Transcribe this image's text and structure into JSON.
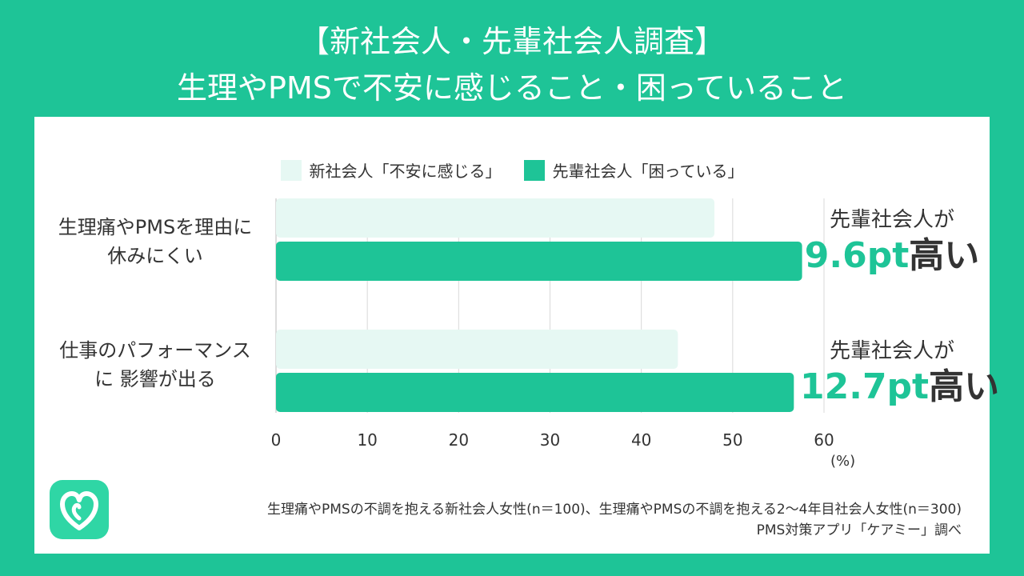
{
  "title_line1": "【新社会人・先輩社会人調査】",
  "title_line2": "生理やPMSで不安に感じること・困っていること",
  "colors": {
    "background": "#1ec497",
    "series_new": "#e6f8f3",
    "series_senior": "#1ec497",
    "accent_text": "#1ec497"
  },
  "annotations": [
    {
      "top": "先輩社会人が",
      "num": "9.6pt",
      "suffix": "高い"
    },
    {
      "top": "先輩社会人が",
      "num": "12.7pt",
      "suffix": "高い"
    }
  ],
  "category_lines": [
    [
      "生理痛やPMSを理由に",
      "休みにくい"
    ],
    [
      "仕事のパフォーマンス",
      "に 影響が出る"
    ]
  ],
  "unit": "(%)",
  "footnote_line1": "生理痛やPMSの不調を抱える新社会人女性(n＝100)、生理痛やPMSの不調を抱える2〜4年目社会人女性(n＝300)",
  "footnote_line2": "PMS対策アプリ「ケアミー」調べ",
  "logo_icon": "heart-drop-icon",
  "chart_data": {
    "type": "bar",
    "orientation": "horizontal",
    "categories": [
      "生理痛やPMSを理由に休みにくい",
      "仕事のパフォーマンスに 影響が出る"
    ],
    "series": [
      {
        "name": "新社会人「不安に感じる」",
        "values": [
          48,
          44
        ]
      },
      {
        "name": "先輩社会人「困っている」",
        "values": [
          57.6,
          56.7
        ]
      }
    ],
    "xlim": [
      0,
      60
    ],
    "xticks": [
      "0",
      "10",
      "20",
      "30",
      "40",
      "50",
      "60"
    ],
    "grid": true,
    "legend": "top-center"
  }
}
